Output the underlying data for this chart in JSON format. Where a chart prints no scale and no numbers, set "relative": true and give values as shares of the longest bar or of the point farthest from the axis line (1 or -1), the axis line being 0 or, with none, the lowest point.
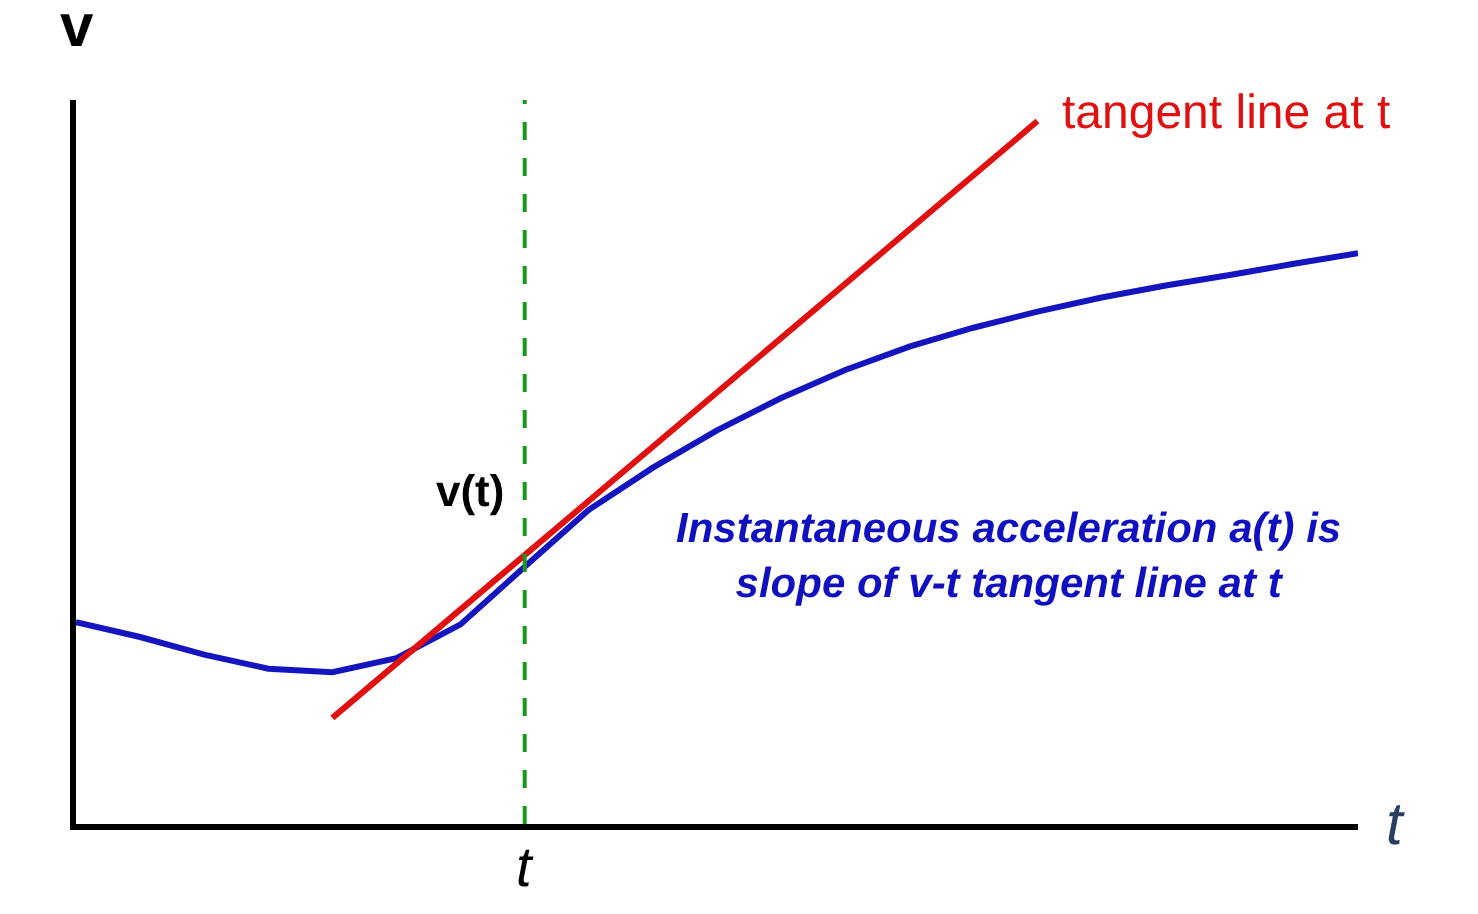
{
  "chart_data": {
    "type": "line",
    "relative": true,
    "xlabel": "t",
    "ylabel": "v",
    "categories": [
      null,
      null,
      null,
      null,
      null,
      null,
      null,
      null,
      null,
      null,
      null,
      null,
      null,
      null,
      null,
      null,
      null,
      null,
      null,
      null,
      null
    ],
    "series": [
      {
        "color": "#1515c0",
        "values": [
          0.287,
          0.266,
          0.241,
          0.221,
          0.216,
          0.236,
          0.284,
          0.366,
          0.447,
          0.507,
          0.56,
          0.606,
          0.646,
          0.679,
          0.706,
          0.729,
          0.749,
          0.766,
          0.781,
          0.797,
          0.812
        ]
      },
      {
        "color": "#e01010",
        "values": [
          null,
          null,
          null,
          null,
          0.151,
          null,
          null,
          null,
          null,
          null,
          null,
          null,
          null,
          null,
          null,
          1,
          null,
          null,
          null,
          null,
          null
        ]
      }
    ],
    "annotations": [
      "tangent line at t",
      "v(t)",
      "Instantaneous acceleration a(t) is\nslope of v-t tangent line at t",
      "t"
    ],
    "legend": false,
    "marker": "none",
    "line_style": "solid"
  }
}
